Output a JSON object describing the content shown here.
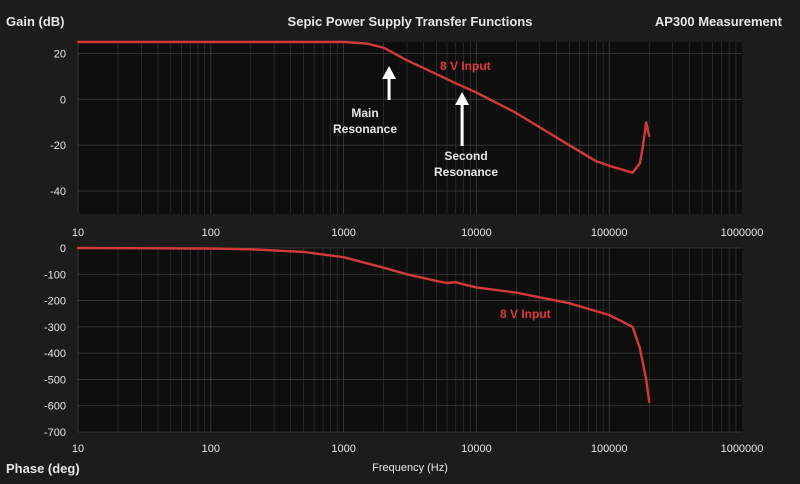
{
  "title": "Sepic Power Supply Transfer Functions",
  "corner_label": "AP300 Measurement",
  "colors": {
    "background": "#1c1c1c",
    "plot": "#0e0e0e",
    "grid": "#3a3a3a",
    "trace": "#d23a3a",
    "text": "#e6e6e6"
  },
  "chart_data": [
    {
      "type": "line",
      "ylabel": "Gain (dB)",
      "xscale": "log",
      "xlim": [
        10,
        1000000
      ],
      "ylim": [
        -50,
        25
      ],
      "y_ticks": [
        20,
        0,
        -20,
        -40
      ],
      "x_ticks": [
        "10",
        "100",
        "1000",
        "10000",
        "100000",
        "1000000"
      ],
      "grid": true,
      "series": [
        {
          "name": "8 V Input",
          "x": [
            10,
            100,
            500,
            1000,
            1500,
            2000,
            3000,
            5000,
            7000,
            10000,
            20000,
            50000,
            80000,
            100000,
            150000,
            170000,
            180000,
            190000,
            200000
          ],
          "y": [
            25,
            25,
            25,
            25,
            24.3,
            22.5,
            17,
            11,
            7,
            3,
            -6,
            -20,
            -27,
            -29,
            -32,
            -28,
            -20,
            -10,
            -16
          ]
        }
      ],
      "annotations": [
        {
          "text": [
            "Main",
            "Resonance"
          ],
          "x": 2200,
          "y": 20
        },
        {
          "text": [
            "Second",
            "Resonance"
          ],
          "x": 7800,
          "y": 7
        }
      ]
    },
    {
      "type": "line",
      "xlabel": "Frequency (Hz)",
      "ylabel": "Phase (deg)",
      "xscale": "log",
      "xlim": [
        10,
        1000000
      ],
      "ylim": [
        -700,
        0
      ],
      "y_ticks": [
        0,
        -100,
        -200,
        -300,
        -400,
        -500,
        -600,
        -700
      ],
      "x_ticks": [
        "10",
        "100",
        "1000",
        "10000",
        "100000",
        "1000000"
      ],
      "grid": true,
      "series": [
        {
          "name": "8 V Input",
          "x": [
            10,
            100,
            200,
            500,
            1000,
            2000,
            3000,
            5000,
            6000,
            7000,
            8000,
            10000,
            20000,
            50000,
            100000,
            150000,
            170000,
            190000,
            200000
          ],
          "y": [
            0,
            -2,
            -5,
            -15,
            -35,
            -75,
            -100,
            -125,
            -133,
            -130,
            -138,
            -150,
            -170,
            -210,
            -255,
            -300,
            -380,
            -500,
            -585
          ]
        }
      ]
    }
  ]
}
